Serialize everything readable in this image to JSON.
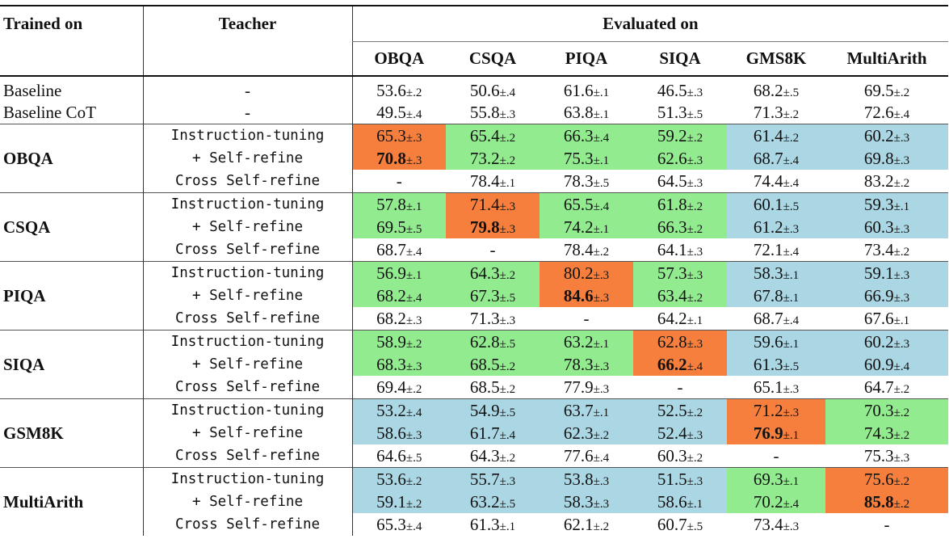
{
  "header": {
    "trained_on": "Trained on",
    "teacher": "Teacher",
    "evaluated_on": "Evaluated on",
    "datasets": [
      "OBQA",
      "CSQA",
      "PIQA",
      "SIQA",
      "GMS8K",
      "MultiArith"
    ]
  },
  "colors": {
    "orange": "#f67f3d",
    "green": "#92eb8f",
    "blue": "#abd7e4"
  },
  "baselines": [
    {
      "name": "Baseline",
      "teacher": "-",
      "cells": [
        {
          "v": "53.6",
          "sd": "±.2"
        },
        {
          "v": "50.6",
          "sd": "±.4"
        },
        {
          "v": "61.6",
          "sd": "±.1"
        },
        {
          "v": "46.5",
          "sd": "±.3"
        },
        {
          "v": "68.2",
          "sd": "±.5"
        },
        {
          "v": "69.5",
          "sd": "±.2"
        }
      ]
    },
    {
      "name": "Baseline CoT",
      "teacher": "-",
      "cells": [
        {
          "v": "49.5",
          "sd": "±.4"
        },
        {
          "v": "55.8",
          "sd": "±.3"
        },
        {
          "v": "63.8",
          "sd": "±.1"
        },
        {
          "v": "51.3",
          "sd": "±.5"
        },
        {
          "v": "71.3",
          "sd": "±.2"
        },
        {
          "v": "72.6",
          "sd": "±.4"
        }
      ]
    }
  ],
  "groups": [
    {
      "name": "OBQA",
      "rows": [
        {
          "teacher": "Instruction-tuning",
          "cells": [
            {
              "v": "65.3",
              "sd": "±.3",
              "c": "orange"
            },
            {
              "v": "65.4",
              "sd": "±.2",
              "c": "green"
            },
            {
              "v": "66.3",
              "sd": "±.4",
              "c": "green"
            },
            {
              "v": "59.2",
              "sd": "±.2",
              "c": "green"
            },
            {
              "v": "61.4",
              "sd": "±.2",
              "c": "blue"
            },
            {
              "v": "60.2",
              "sd": "±.3",
              "c": "blue"
            }
          ]
        },
        {
          "teacher": "+ Self-refine",
          "cells": [
            {
              "v": "70.8",
              "sd": "±.3",
              "c": "orange",
              "b": true
            },
            {
              "v": "73.2",
              "sd": "±.2",
              "c": "green"
            },
            {
              "v": "75.3",
              "sd": "±.1",
              "c": "green"
            },
            {
              "v": "62.6",
              "sd": "±.3",
              "c": "green"
            },
            {
              "v": "68.7",
              "sd": "±.4",
              "c": "blue"
            },
            {
              "v": "69.8",
              "sd": "±.3",
              "c": "blue"
            }
          ]
        },
        {
          "teacher": "Cross Self-refine",
          "cells": [
            {
              "v": "-",
              "sd": ""
            },
            {
              "v": "78.4",
              "sd": "±.1"
            },
            {
              "v": "78.3",
              "sd": "±.5"
            },
            {
              "v": "64.5",
              "sd": "±.3"
            },
            {
              "v": "74.4",
              "sd": "±.4"
            },
            {
              "v": "83.2",
              "sd": "±.2"
            }
          ]
        }
      ]
    },
    {
      "name": "CSQA",
      "rows": [
        {
          "teacher": "Instruction-tuning",
          "cells": [
            {
              "v": "57.8",
              "sd": "±.1",
              "c": "green"
            },
            {
              "v": "71.4",
              "sd": "±.3",
              "c": "orange"
            },
            {
              "v": "65.5",
              "sd": "±.4",
              "c": "green"
            },
            {
              "v": "61.8",
              "sd": "±.2",
              "c": "green"
            },
            {
              "v": "60.1",
              "sd": "±.5",
              "c": "blue"
            },
            {
              "v": "59.3",
              "sd": "±.1",
              "c": "blue"
            }
          ]
        },
        {
          "teacher": "+ Self-refine",
          "cells": [
            {
              "v": "69.5",
              "sd": "±.5",
              "c": "green"
            },
            {
              "v": "79.8",
              "sd": "±.3",
              "c": "orange",
              "b": true
            },
            {
              "v": "74.2",
              "sd": "±.1",
              "c": "green"
            },
            {
              "v": "66.3",
              "sd": "±.2",
              "c": "green"
            },
            {
              "v": "61.2",
              "sd": "±.3",
              "c": "blue"
            },
            {
              "v": "60.3",
              "sd": "±.3",
              "c": "blue"
            }
          ]
        },
        {
          "teacher": "Cross Self-refine",
          "cells": [
            {
              "v": "68.7",
              "sd": "±.4"
            },
            {
              "v": "-",
              "sd": ""
            },
            {
              "v": "78.4",
              "sd": "±.2"
            },
            {
              "v": "64.1",
              "sd": "±.3"
            },
            {
              "v": "72.1",
              "sd": "±.4"
            },
            {
              "v": "73.4",
              "sd": "±.2"
            }
          ]
        }
      ]
    },
    {
      "name": "PIQA",
      "rows": [
        {
          "teacher": "Instruction-tuning",
          "cells": [
            {
              "v": "56.9",
              "sd": "±.1",
              "c": "green"
            },
            {
              "v": "64.3",
              "sd": "±.2",
              "c": "green"
            },
            {
              "v": "80.2",
              "sd": "±.3",
              "c": "orange"
            },
            {
              "v": "57.3",
              "sd": "±.3",
              "c": "green"
            },
            {
              "v": "58.3",
              "sd": "±.1",
              "c": "blue"
            },
            {
              "v": "59.1",
              "sd": "±.3",
              "c": "blue"
            }
          ]
        },
        {
          "teacher": "+ Self-refine",
          "cells": [
            {
              "v": "68.2",
              "sd": "±.4",
              "c": "green"
            },
            {
              "v": "67.3",
              "sd": "±.5",
              "c": "green"
            },
            {
              "v": "84.6",
              "sd": "±.3",
              "c": "orange",
              "b": true
            },
            {
              "v": "63.4",
              "sd": "±.2",
              "c": "green"
            },
            {
              "v": "67.8",
              "sd": "±.1",
              "c": "blue"
            },
            {
              "v": "66.9",
              "sd": "±.3",
              "c": "blue"
            }
          ]
        },
        {
          "teacher": "Cross Self-refine",
          "cells": [
            {
              "v": "68.2",
              "sd": "±.3"
            },
            {
              "v": "71.3",
              "sd": "±.3"
            },
            {
              "v": "-",
              "sd": ""
            },
            {
              "v": "64.2",
              "sd": "±.1"
            },
            {
              "v": "68.7",
              "sd": "±.4"
            },
            {
              "v": "67.6",
              "sd": "±.1"
            }
          ]
        }
      ]
    },
    {
      "name": "SIQA",
      "rows": [
        {
          "teacher": "Instruction-tuning",
          "cells": [
            {
              "v": "58.9",
              "sd": "±.2",
              "c": "green"
            },
            {
              "v": "62.8",
              "sd": "±.5",
              "c": "green"
            },
            {
              "v": "63.2",
              "sd": "±.1",
              "c": "green"
            },
            {
              "v": "62.8",
              "sd": "±.3",
              "c": "orange"
            },
            {
              "v": "59.6",
              "sd": "±.1",
              "c": "blue"
            },
            {
              "v": "60.2",
              "sd": "±.3",
              "c": "blue"
            }
          ]
        },
        {
          "teacher": "+ Self-refine",
          "cells": [
            {
              "v": "68.3",
              "sd": "±.3",
              "c": "green"
            },
            {
              "v": "68.5",
              "sd": "±.2",
              "c": "green"
            },
            {
              "v": "78.3",
              "sd": "±.3",
              "c": "green"
            },
            {
              "v": "66.2",
              "sd": "±.4",
              "c": "orange",
              "b": true
            },
            {
              "v": "61.3",
              "sd": "±.5",
              "c": "blue"
            },
            {
              "v": "60.9",
              "sd": "±.4",
              "c": "blue"
            }
          ]
        },
        {
          "teacher": "Cross Self-refine",
          "cells": [
            {
              "v": "69.4",
              "sd": "±.2"
            },
            {
              "v": "68.5",
              "sd": "±.2"
            },
            {
              "v": "77.9",
              "sd": "±.3"
            },
            {
              "v": "-",
              "sd": ""
            },
            {
              "v": "65.1",
              "sd": "±.3"
            },
            {
              "v": "64.7",
              "sd": "±.2"
            }
          ]
        }
      ]
    },
    {
      "name": "GSM8K",
      "rows": [
        {
          "teacher": "Instruction-tuning",
          "cells": [
            {
              "v": "53.2",
              "sd": "±.4",
              "c": "blue"
            },
            {
              "v": "54.9",
              "sd": "±.5",
              "c": "blue"
            },
            {
              "v": "63.7",
              "sd": "±.1",
              "c": "blue"
            },
            {
              "v": "52.5",
              "sd": "±.2",
              "c": "blue"
            },
            {
              "v": "71.2",
              "sd": "±.3",
              "c": "orange"
            },
            {
              "v": "70.3",
              "sd": "±.2",
              "c": "green"
            }
          ]
        },
        {
          "teacher": "+ Self-refine",
          "cells": [
            {
              "v": "58.6",
              "sd": "±.3",
              "c": "blue"
            },
            {
              "v": "61.7",
              "sd": "±.4",
              "c": "blue"
            },
            {
              "v": "62.3",
              "sd": "±.2",
              "c": "blue"
            },
            {
              "v": "52.4",
              "sd": "±.3",
              "c": "blue"
            },
            {
              "v": "76.9",
              "sd": "±.1",
              "c": "orange",
              "b": true
            },
            {
              "v": "74.3",
              "sd": "±.2",
              "c": "green"
            }
          ]
        },
        {
          "teacher": "Cross Self-refine",
          "cells": [
            {
              "v": "64.6",
              "sd": "±.5"
            },
            {
              "v": "64.3",
              "sd": "±.2"
            },
            {
              "v": "77.6",
              "sd": "±.4"
            },
            {
              "v": "60.3",
              "sd": "±.2"
            },
            {
              "v": "-",
              "sd": ""
            },
            {
              "v": "75.3",
              "sd": "±.3"
            }
          ]
        }
      ]
    },
    {
      "name": "MultiArith",
      "rows": [
        {
          "teacher": "Instruction-tuning",
          "cells": [
            {
              "v": "53.6",
              "sd": "±.2",
              "c": "blue"
            },
            {
              "v": "55.7",
              "sd": "±.3",
              "c": "blue"
            },
            {
              "v": "53.8",
              "sd": "±.3",
              "c": "blue"
            },
            {
              "v": "51.5",
              "sd": "±.3",
              "c": "blue"
            },
            {
              "v": "69.3",
              "sd": "±.1",
              "c": "green"
            },
            {
              "v": "75.6",
              "sd": "±.2",
              "c": "orange"
            }
          ]
        },
        {
          "teacher": "+ Self-refine",
          "cells": [
            {
              "v": "59.1",
              "sd": "±.2",
              "c": "blue"
            },
            {
              "v": "63.2",
              "sd": "±.5",
              "c": "blue"
            },
            {
              "v": "58.3",
              "sd": "±.3",
              "c": "blue"
            },
            {
              "v": "58.6",
              "sd": "±.1",
              "c": "blue"
            },
            {
              "v": "70.2",
              "sd": "±.4",
              "c": "green"
            },
            {
              "v": "85.8",
              "sd": "±.2",
              "c": "orange",
              "b": true
            }
          ]
        },
        {
          "teacher": "Cross Self-refine",
          "cells": [
            {
              "v": "65.3",
              "sd": "±.4"
            },
            {
              "v": "61.3",
              "sd": "±.1"
            },
            {
              "v": "62.1",
              "sd": "±.2"
            },
            {
              "v": "60.7",
              "sd": "±.5"
            },
            {
              "v": "73.4",
              "sd": "±.3"
            },
            {
              "v": "-",
              "sd": ""
            }
          ]
        }
      ]
    }
  ]
}
